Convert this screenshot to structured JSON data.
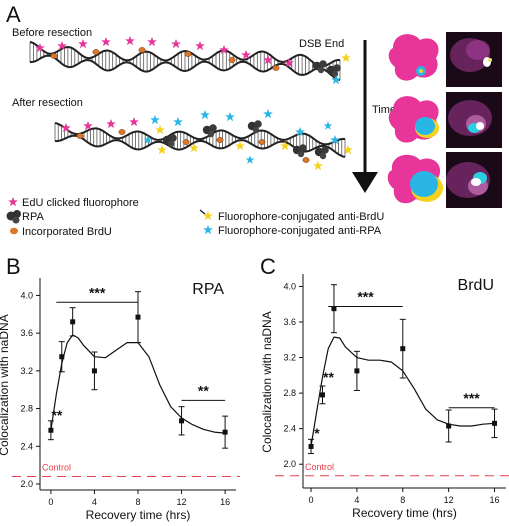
{
  "panel_a": {
    "letter": "A",
    "before_label": "Before resection",
    "after_label": "After resection",
    "dsb_label": "DSB End",
    "time_label": "Time",
    "legend": [
      {
        "label": "EdU clicked fluorophore",
        "icon": "magenta-star-icon"
      },
      {
        "label": "RPA",
        "icon": "rpa-cluster-icon"
      },
      {
        "label": "Incorporated BrdU",
        "icon": "brdu-dot-icon"
      },
      {
        "label": "Fluorophore-conjugated anti-BrdU",
        "icon": "yellow-star-icon"
      },
      {
        "label": "Fluorophore-conjugated anti-RPA",
        "icon": "blue-star-icon"
      }
    ],
    "colors": {
      "edu": "#e8359a",
      "anti_brdu": "#f5d21c",
      "anti_rpa": "#29b6e6",
      "brdu": "#d9772a",
      "rpa": "#333333"
    }
  },
  "chart_data": [
    {
      "letter": "B",
      "type": "line",
      "title": "RPA",
      "xlabel": "Recovery time (hrs)",
      "ylabel": "Colocalization with naDNA",
      "xlim": [
        -1,
        17
      ],
      "ylim": [
        2.0,
        4.1
      ],
      "xticks": [
        0,
        4,
        8,
        12,
        16
      ],
      "xtick_labels": [
        "0",
        "4",
        "8",
        "12",
        "16"
      ],
      "yticks": [
        2.0,
        2.4,
        2.8,
        3.2,
        3.6,
        4.0
      ],
      "ytick_labels": [
        "2.0",
        "2.4",
        "2.8",
        "3.2",
        "3.6",
        "4.0"
      ],
      "points": [
        {
          "x": 0,
          "y": 2.57,
          "err": 0.1
        },
        {
          "x": 1,
          "y": 3.35,
          "err": 0.16
        },
        {
          "x": 2,
          "y": 3.72,
          "err": 0.15
        },
        {
          "x": 4,
          "y": 3.2,
          "err": 0.2
        },
        {
          "x": 8,
          "y": 3.77,
          "err": 0.27
        },
        {
          "x": 12,
          "y": 2.67,
          "err": 0.15
        },
        {
          "x": 16,
          "y": 2.55,
          "err": 0.17
        }
      ],
      "fit": [
        [
          0,
          2.57
        ],
        [
          0.5,
          2.95
        ],
        [
          1,
          3.28
        ],
        [
          1.5,
          3.5
        ],
        [
          2,
          3.58
        ],
        [
          2.5,
          3.55
        ],
        [
          3,
          3.47
        ],
        [
          4,
          3.35
        ],
        [
          5,
          3.34
        ],
        [
          6,
          3.42
        ],
        [
          7,
          3.5
        ],
        [
          8,
          3.5
        ],
        [
          9,
          3.35
        ],
        [
          10,
          3.05
        ],
        [
          11,
          2.82
        ],
        [
          12,
          2.7
        ],
        [
          13,
          2.63
        ],
        [
          14,
          2.58
        ],
        [
          15,
          2.55
        ],
        [
          16,
          2.54
        ]
      ],
      "control": {
        "label": "Control",
        "y": 2.08,
        "color": "#e8404a"
      },
      "annotations": [
        {
          "text": "**",
          "x": 0,
          "y": 2.7,
          "bracket": null
        },
        {
          "text": "***",
          "x": 3.75,
          "y": 3.97,
          "bracket": [
            0.5,
            8
          ]
        },
        {
          "text": "**",
          "x": 14,
          "y": 2.93,
          "bracket": [
            12,
            16
          ]
        }
      ]
    },
    {
      "letter": "C",
      "type": "line",
      "title": "BrdU",
      "xlabel": "Recovery time (hrs)",
      "ylabel": "Colocalization with naDNA",
      "xlim": [
        -0.7,
        17
      ],
      "ylim": [
        1.8,
        4.05
      ],
      "xticks": [
        0,
        4,
        8,
        12,
        16
      ],
      "xtick_labels": [
        "0",
        "4",
        "8",
        "12",
        "16"
      ],
      "yticks": [
        2.0,
        2.4,
        2.8,
        3.2,
        3.6,
        4.0
      ],
      "ytick_labels": [
        "2.0",
        "2.4",
        "2.8",
        "3.2",
        "3.6",
        "4.0"
      ],
      "points": [
        {
          "x": 0,
          "y": 2.2,
          "err": 0.08
        },
        {
          "x": 1,
          "y": 2.78,
          "err": 0.1
        },
        {
          "x": 2,
          "y": 3.75,
          "err": 0.27
        },
        {
          "x": 4,
          "y": 3.05,
          "err": 0.22
        },
        {
          "x": 8,
          "y": 3.3,
          "err": 0.33
        },
        {
          "x": 12,
          "y": 2.43,
          "err": 0.18
        },
        {
          "x": 16,
          "y": 2.46,
          "err": 0.16
        }
      ],
      "fit": [
        [
          0,
          2.2
        ],
        [
          0.5,
          2.6
        ],
        [
          1,
          2.98
        ],
        [
          1.5,
          3.3
        ],
        [
          2,
          3.43
        ],
        [
          2.5,
          3.42
        ],
        [
          3,
          3.32
        ],
        [
          4,
          3.2
        ],
        [
          5,
          3.17
        ],
        [
          6,
          3.17
        ],
        [
          7,
          3.15
        ],
        [
          8,
          3.05
        ],
        [
          9,
          2.85
        ],
        [
          10,
          2.62
        ],
        [
          11,
          2.5
        ],
        [
          12,
          2.45
        ],
        [
          13,
          2.43
        ],
        [
          14,
          2.43
        ],
        [
          15,
          2.45
        ],
        [
          16,
          2.46
        ]
      ],
      "control": {
        "label": "Control",
        "y": 1.87,
        "color": "#e8404a"
      },
      "annotations": [
        {
          "text": "*",
          "x": 0,
          "y": 2.32,
          "bracket": null
        },
        {
          "text": "**",
          "x": 1,
          "y": 2.95,
          "bracket": null
        },
        {
          "text": "***",
          "x": 5,
          "y": 3.82,
          "bracket": [
            1.5,
            8
          ]
        },
        {
          "text": "***",
          "x": 14,
          "y": 2.68,
          "bracket": [
            12,
            16
          ]
        }
      ]
    }
  ]
}
